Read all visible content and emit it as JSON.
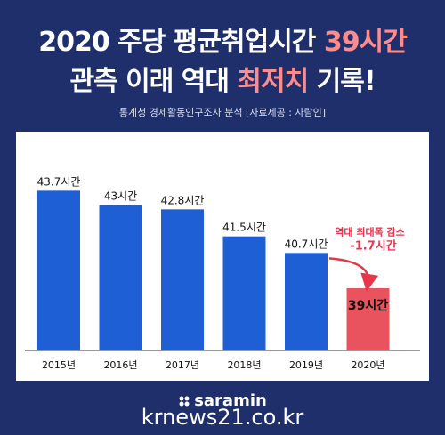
{
  "header": {
    "line1_a": "2020 주당 평균취업시간 ",
    "line1_b": "39시간",
    "line2_a": "관측 이래 역대 ",
    "line2_b": "최저치",
    "line2_c": " 기록!",
    "source": "통계청 경제활동인구조사 분석 [자료제공 : 사람인]"
  },
  "annotation": {
    "line1": "역대 최대폭 감소",
    "line2": "-1.7시간"
  },
  "footer": {
    "logo": "saramin",
    "watermark": "krnews21.co.kr"
  },
  "colors": {
    "background": "#1e2f6b",
    "bar": "#1f5fd6",
    "highlight_bar": "#e8535e",
    "highlight_text": "#ff8c8c",
    "annotation": "#e8354a"
  },
  "chart_data": {
    "type": "bar",
    "categories": [
      "2015년",
      "2016년",
      "2017년",
      "2018년",
      "2019년",
      "2020년"
    ],
    "values": [
      43.7,
      43,
      42.8,
      41.5,
      40.7,
      39
    ],
    "data_labels": [
      "43.7시간",
      "43시간",
      "42.8시간",
      "41.5시간",
      "40.7시간",
      "39시간"
    ],
    "highlight_index": 5,
    "ylim": [
      36,
      45
    ],
    "grid": false
  }
}
